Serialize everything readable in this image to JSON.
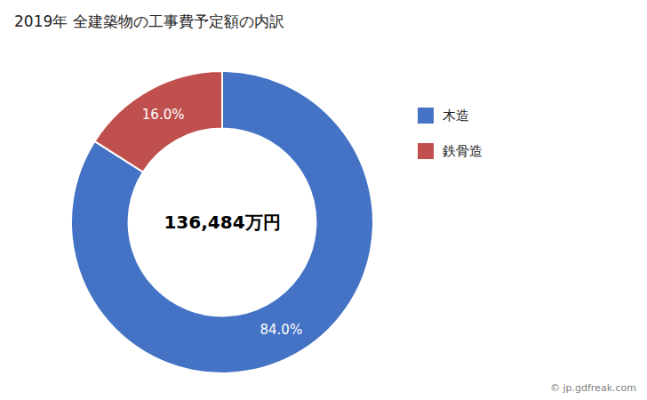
{
  "chart_data": {
    "type": "pie",
    "title": "2019年 全建築物の工事費予定額の内訳",
    "categories": [
      "木造",
      "鉄骨造"
    ],
    "values": [
      84.0,
      16.0
    ],
    "value_labels": [
      "84.0%",
      "16.0%"
    ],
    "colors": [
      "#4472C4",
      "#C0504D"
    ],
    "data_labels": true,
    "legend": "right",
    "annotations": [
      "136,484万円",
      "© jp.gdfreak.com"
    ]
  }
}
